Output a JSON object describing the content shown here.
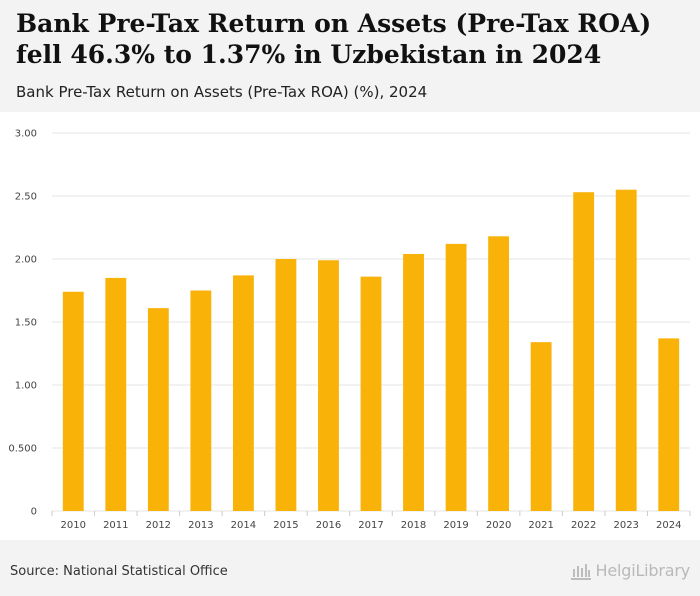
{
  "header": {
    "title": "Bank Pre-Tax Return on Assets (Pre-Tax ROA) fell 46.3% to 1.37% in Uzbekistan in 2024",
    "subtitle": "Bank Pre-Tax Return on Assets (Pre-Tax ROA) (%), 2024"
  },
  "footer": {
    "source": "Source: National Statistical Office",
    "logo_text": "HelgiLibrary"
  },
  "colors": {
    "bar": "#f9b208",
    "grid": "#e6e6e6"
  },
  "chart_data": {
    "type": "bar",
    "title": "Bank Pre-Tax Return on Assets (Pre-Tax ROA) fell 46.3% to 1.37% in Uzbekistan in 2024",
    "subtitle": "Bank Pre-Tax Return on Assets (Pre-Tax ROA) (%), 2024",
    "xlabel": "",
    "ylabel": "",
    "categories": [
      "2010",
      "2011",
      "2012",
      "2013",
      "2014",
      "2015",
      "2016",
      "2017",
      "2018",
      "2019",
      "2020",
      "2021",
      "2022",
      "2023",
      "2024"
    ],
    "values": [
      1.74,
      1.85,
      1.61,
      1.75,
      1.87,
      2.0,
      1.99,
      1.86,
      2.04,
      2.12,
      2.18,
      1.34,
      2.53,
      2.55,
      1.37
    ],
    "ylim": [
      0,
      3.0
    ],
    "yticks": [
      0,
      0.5,
      1.0,
      1.5,
      2.0,
      2.5,
      3.0
    ],
    "ytick_labels": [
      "0",
      "0.500",
      "1.00",
      "1.50",
      "2.00",
      "2.50",
      "3.00"
    ],
    "grid": true,
    "legend": "none"
  }
}
